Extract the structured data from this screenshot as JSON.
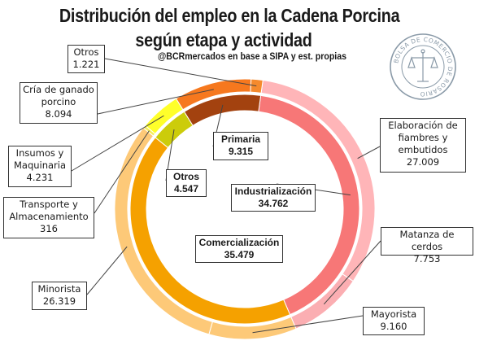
{
  "title_line1": "Distribución del empleo en la Cadena Porcina",
  "title_line2": "según etapa y actividad",
  "subtitle": "@BCRmercados en base a SIPA y est. propias",
  "logo_text": "BOLSA DE COMERCIO DE ROSARIO",
  "chart_data": {
    "type": "donut",
    "title": "Distribución del empleo en la Cadena Porcina según etapa y actividad",
    "start_angle_deg": 8,
    "inner_ring": [
      {
        "name": "Industrialización",
        "value": 34762,
        "display": "34.762",
        "color": "#f77777"
      },
      {
        "name": "Comercialización",
        "value": 35479,
        "display": "35.479",
        "color": "#f5a100"
      },
      {
        "name": "Otros",
        "value": 4547,
        "display": "4.547",
        "color": "#cccc0a"
      },
      {
        "name": "Primaria",
        "value": 9315,
        "display": "9.315",
        "color": "#a3420f"
      }
    ],
    "outer_ring": [
      {
        "name": "Elaboración de fiambres y embutidos",
        "value": 27009,
        "display": "27.009",
        "color": "#ffb5b8"
      },
      {
        "name": "Matanza de cerdos",
        "value": 7753,
        "display": "7.753",
        "color": "#fbaeb2"
      },
      {
        "name": "Mayorista",
        "value": 9160,
        "display": "9.160",
        "color": "#fdc978"
      },
      {
        "name": "Minorista",
        "value": 26319,
        "display": "26.319",
        "color": "#fdc978"
      },
      {
        "name": "Transporte y Almacenamiento",
        "value": 316,
        "display": "316",
        "color": "#f6ee58"
      },
      {
        "name": "Insumos y Maquinaria",
        "value": 4231,
        "display": "4.231",
        "color": "#ffff2a"
      },
      {
        "name": "Cría de ganado porcino",
        "value": 8094,
        "display": "8.094",
        "color": "#f6781e"
      },
      {
        "name": "Otros",
        "value": 1221,
        "display": "1.221",
        "color": "#f58a2d"
      }
    ]
  },
  "labels": {
    "primaria": {
      "name": "Primaria",
      "value": "9.315"
    },
    "otros_inner": {
      "name": "Otros",
      "value": "4.547"
    },
    "industrializacion": {
      "name": "Industrialización",
      "value": "34.762"
    },
    "comercializacion": {
      "name": "Comercialización",
      "value": "35.479"
    },
    "otros_outer": {
      "name": "Otros",
      "value": "1.221"
    },
    "cria": {
      "line1": "Cría de ganado",
      "line2": "porcino",
      "value": "8.094"
    },
    "insumos": {
      "line1": "Insumos y",
      "line2": "Maquinaria",
      "value": "4.231"
    },
    "transporte": {
      "line1": "Transporte y",
      "line2": "Almacenamiento",
      "value": "316"
    },
    "minorista": {
      "name": "Minorista",
      "value": "26.319"
    },
    "mayorista": {
      "name": "Mayorista",
      "value": "9.160"
    },
    "matanza": {
      "name": "Matanza de cerdos",
      "value": "7.753"
    },
    "elaboracion": {
      "line1": "Elaboración de",
      "line2": "fiambres y",
      "line3": "embutidos",
      "value": "27.009"
    }
  }
}
